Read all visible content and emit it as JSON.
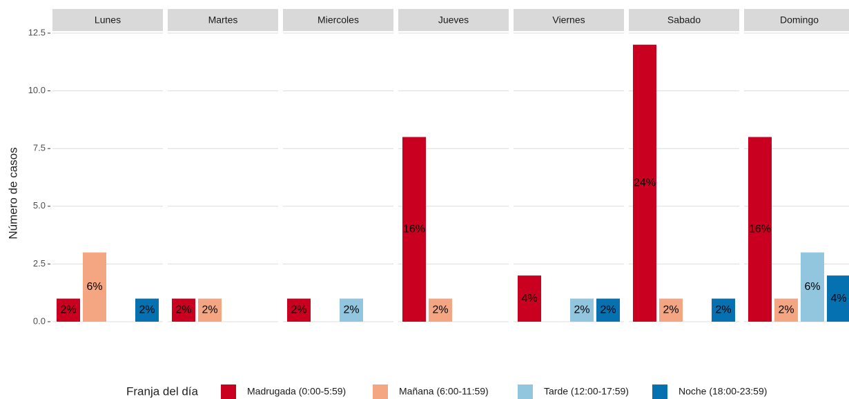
{
  "chart_data": {
    "type": "bar",
    "y_label": "Número de casos",
    "legend_title": "Franja del día",
    "legend_position": "bottom",
    "categories": [
      "Lunes",
      "Martes",
      "Miercoles",
      "Jueves",
      "Viernes",
      "Sabado",
      "Domingo"
    ],
    "series": [
      {
        "name": "Madrugada (0:00-5:59)",
        "color": "#ca0020",
        "values": [
          1,
          1,
          1,
          8,
          2,
          12,
          8
        ],
        "value_labels": [
          "2%",
          "2%",
          "2%",
          "16%",
          "4%",
          "24%",
          "16%"
        ]
      },
      {
        "name": "Mañana (6:00-11:59)",
        "color": "#f4a582",
        "values": [
          3,
          1,
          null,
          1,
          null,
          1,
          1
        ],
        "value_labels": [
          "6%",
          "2%",
          null,
          "2%",
          null,
          "2%",
          "2%"
        ]
      },
      {
        "name": "Tarde (12:00-17:59)",
        "color": "#92c5de",
        "values": [
          null,
          null,
          1,
          null,
          1,
          null,
          3
        ],
        "value_labels": [
          null,
          null,
          "2%",
          null,
          "2%",
          null,
          "6%"
        ]
      },
      {
        "name": "Noche (18:00-23:59)",
        "color": "#0571b0",
        "values": [
          1,
          null,
          null,
          null,
          1,
          1,
          2
        ],
        "value_labels": [
          "2%",
          null,
          null,
          null,
          "2%",
          "2%",
          "4%"
        ]
      }
    ],
    "ylim": [
      0,
      12.5
    ],
    "yticks": [
      {
        "value": 0,
        "label": "0.0"
      },
      2.5,
      {
        "value": 5,
        "label": "5.0"
      },
      7.5,
      {
        "value": 10,
        "label": "10.0"
      },
      12.5
    ],
    "grid": true
  }
}
